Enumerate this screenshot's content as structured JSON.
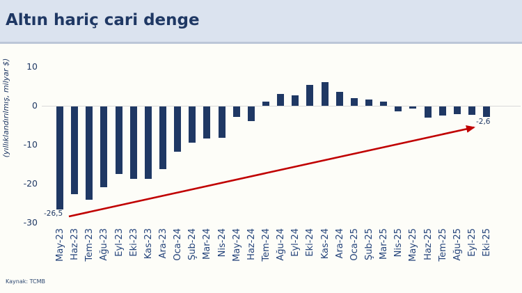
{
  "header": {
    "title": "Altın hariç cari denge"
  },
  "footer": {
    "source": "Kaynak: TCMB"
  },
  "colors": {
    "bar": "#1f3864",
    "title_text": "#1f3864",
    "axis_text": "#24437a",
    "arrow": "#c00000",
    "header_bg": "#dbe3ef",
    "gridline": "#d9d9d9"
  },
  "chart_data": {
    "type": "bar",
    "title": "Altın hariç cari denge",
    "ylabel": "(yıllıklandırılmış, milyar $)",
    "xlabel": "",
    "ylim": [
      -30,
      10
    ],
    "yticks": [
      10,
      0,
      -10,
      -20,
      -30
    ],
    "grid": false,
    "legend": false,
    "categories": [
      "May-23",
      "Haz-23",
      "Tem-23",
      "Ağu-23",
      "Eyl-23",
      "Eki-23",
      "Kas-23",
      "Ara-23",
      "Oca-24",
      "Şub-24",
      "Mar-24",
      "Nis-24",
      "May-24",
      "Haz-24",
      "Tem-24",
      "Ağu-24",
      "Eyl-24",
      "Eki-24",
      "Kas-24",
      "Ara-24",
      "Oca-25",
      "Şub-25",
      "Mar-25",
      "Nis-25",
      "May-25",
      "Haz-25",
      "Tem-25",
      "Ağu-25",
      "Eyl-25",
      "Eki-25"
    ],
    "values": [
      -26.5,
      -22.5,
      -24.0,
      -20.7,
      -17.3,
      -18.6,
      -18.5,
      -16.1,
      -11.6,
      -9.2,
      -8.2,
      -8.0,
      -2.7,
      -3.8,
      1.0,
      3.1,
      2.7,
      5.4,
      6.0,
      3.5,
      2.0,
      1.7,
      1.0,
      -1.2,
      -0.5,
      -2.8,
      -2.4,
      -2.0,
      -2.2,
      -2.6
    ],
    "annotations": [
      {
        "label": "-26,5",
        "category": "May-23",
        "value": -26.5
      },
      {
        "label": "-2,6",
        "category": "Eki-25",
        "value": -2.6
      }
    ],
    "arrow": {
      "from_category": "May-23",
      "to_category": "Eki-25",
      "color": "#c00000"
    }
  }
}
